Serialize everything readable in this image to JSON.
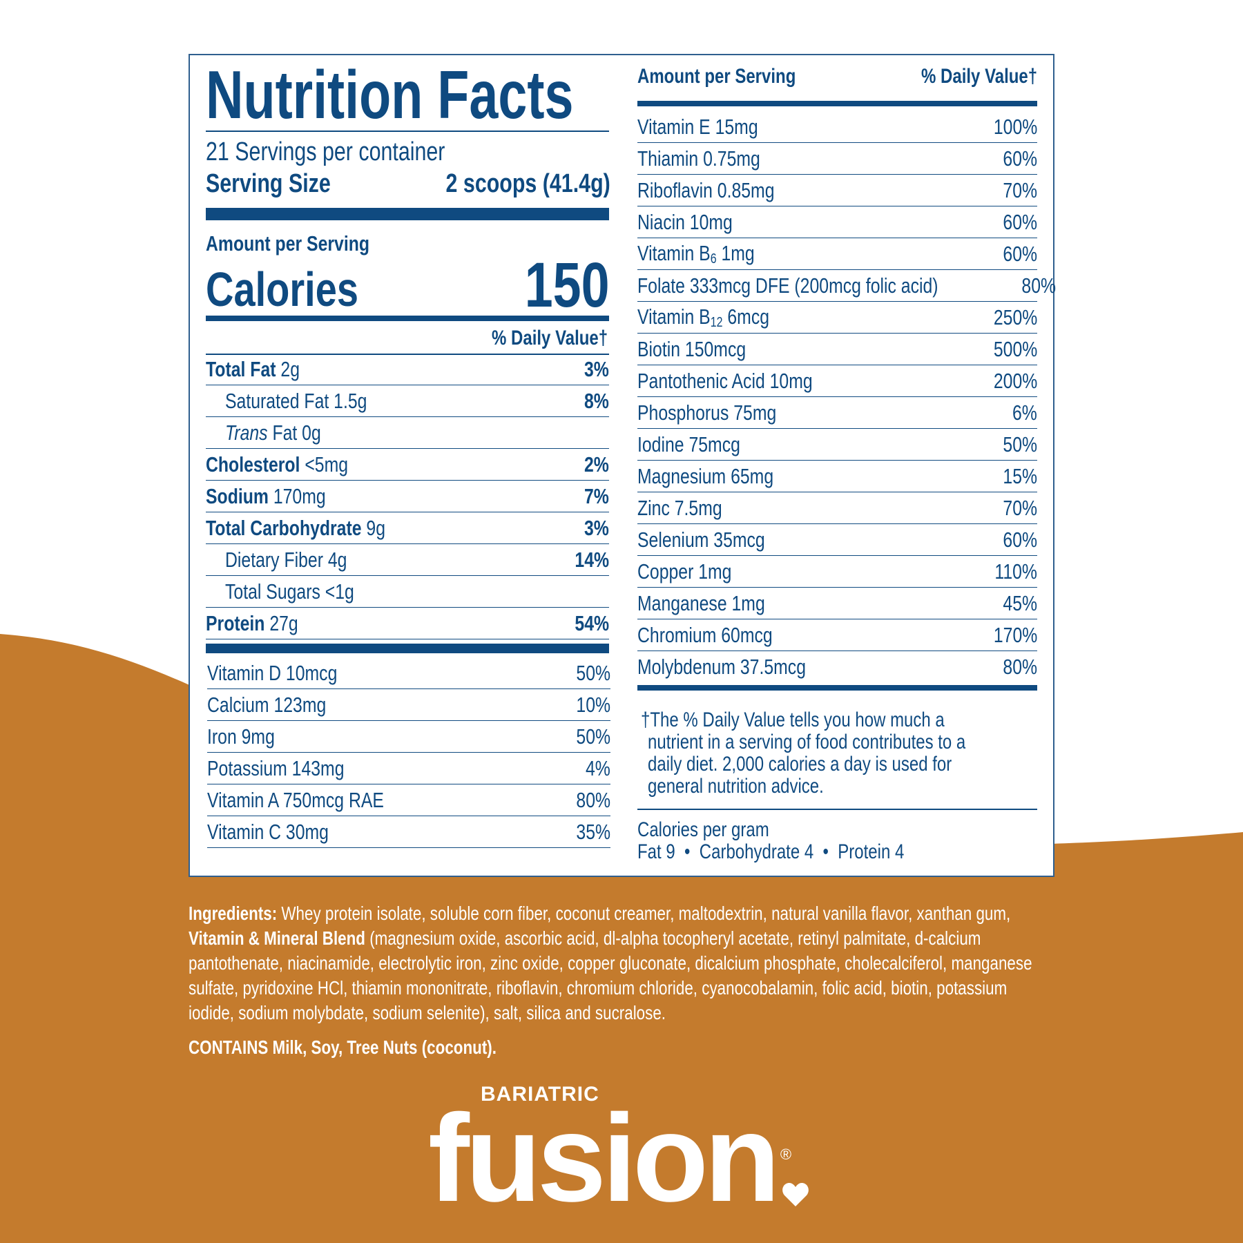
{
  "colors": {
    "navy": "#0f4a80",
    "brand_brown": "#c47b2d",
    "background": "#ffffff"
  },
  "label": {
    "title": "Nutrition Facts",
    "servings": "21 Servings per container",
    "serving_size_label": "Serving Size",
    "serving_size_value": "2 scoops (41.4g)",
    "amount_per_serving": "Amount per Serving",
    "calories_label": "Calories",
    "calories_value": "150",
    "daily_value_header": "% Daily Value†",
    "macros": [
      {
        "name": "Total Fat",
        "amount": "2g",
        "dv": "3%",
        "bold": true
      },
      {
        "name": "Saturated Fat 1.5g",
        "amount": "",
        "dv": "8%",
        "indent": true
      },
      {
        "name": "Trans",
        "amount": "Fat 0g",
        "dv": "",
        "indent": true,
        "italic": true
      },
      {
        "name": "Cholesterol",
        "amount": "<5mg",
        "dv": "2%",
        "bold": true
      },
      {
        "name": "Sodium",
        "amount": "170mg",
        "dv": "7%",
        "bold": true
      },
      {
        "name": "Total Carbohydrate",
        "amount": "9g",
        "dv": "3%",
        "bold": true
      },
      {
        "name": "Dietary Fiber 4g",
        "amount": "",
        "dv": "14%",
        "indent": true
      },
      {
        "name": "Total Sugars <1g",
        "amount": "",
        "dv": "",
        "indent": true
      },
      {
        "name": "Protein",
        "amount": "27g",
        "dv": "54%",
        "bold": true
      }
    ],
    "vitamins_left": [
      {
        "name": "Vitamin D 10mcg",
        "dv": "50%"
      },
      {
        "name": "Calcium 123mg",
        "dv": "10%"
      },
      {
        "name": "Iron 9mg",
        "dv": "50%"
      },
      {
        "name": "Potassium 143mg",
        "dv": "4%"
      },
      {
        "name": "Vitamin A 750mcg RAE",
        "dv": "80%"
      },
      {
        "name": "Vitamin C 30mg",
        "dv": "35%"
      }
    ],
    "right_header_amount": "Amount per Serving",
    "right_header_dv": "% Daily Value†",
    "vitamins_right": [
      {
        "name": "Vitamin E 15mg",
        "dv": "100%"
      },
      {
        "name": "Thiamin 0.75mg",
        "dv": "60%"
      },
      {
        "name": "Riboflavin 0.85mg",
        "dv": "70%"
      },
      {
        "name": "Niacin 10mg",
        "dv": "60%"
      },
      {
        "name": "Vitamin B",
        "sub": "6",
        "rest": " 1mg",
        "dv": "60%"
      },
      {
        "name": "Folate 333mcg DFE (200mcg folic acid)",
        "dv": "80%"
      },
      {
        "name": "Vitamin B",
        "sub": "12",
        "rest": " 6mcg",
        "dv": "250%"
      },
      {
        "name": "Biotin 150mcg",
        "dv": "500%"
      },
      {
        "name": "Pantothenic Acid 10mg",
        "dv": "200%"
      },
      {
        "name": "Phosphorus 75mg",
        "dv": "6%"
      },
      {
        "name": "Iodine 75mcg",
        "dv": "50%"
      },
      {
        "name": "Magnesium 65mg",
        "dv": "15%"
      },
      {
        "name": "Zinc 7.5mg",
        "dv": "70%"
      },
      {
        "name": "Selenium 35mcg",
        "dv": "60%"
      },
      {
        "name": "Copper 1mg",
        "dv": "110%"
      },
      {
        "name": "Manganese 1mg",
        "dv": "45%"
      },
      {
        "name": "Chromium 60mcg",
        "dv": "170%"
      },
      {
        "name": "Molybdenum 37.5mcg",
        "dv": "80%"
      }
    ],
    "footnote_lines": [
      "†The % Daily Value tells you how much a",
      "nutrient in a serving of food contributes to a",
      "daily diet. 2,000 calories a day is used for",
      "general nutrition advice."
    ],
    "calories_per_gram_label": "Calories per gram",
    "calories_per_gram_values": "Fat 9  •  Carbohydrate 4  •  Protein 4"
  },
  "ingredients": {
    "label": "Ingredients:",
    "text1": " Whey protein isolate, soluble corn fiber, coconut creamer, maltodextrin, natural vanilla flavor, xanthan gum,",
    "blend_label": "Vitamin & Mineral Blend",
    "text2": " (magnesium oxide, ascorbic acid, dl-alpha tocopheryl acetate, retinyl palmitate, d-calcium pantothenate, niacinamide, electrolytic iron, zinc oxide, copper gluconate, dicalcium phosphate, cholecalciferol, manganese sulfate, pyridoxine HCl, thiamin mononitrate, riboflavin, chromium chloride, cyanocobalamin, folic acid, biotin, potassium iodide, sodium molybdate, sodium selenite), salt, silica and sucralose.",
    "contains": "CONTAINS Milk, Soy, Tree Nuts (coconut)."
  },
  "logo": {
    "small": "BARIATRIC",
    "big": "fusion",
    "mark": "®",
    "icon": "heart-icon"
  }
}
